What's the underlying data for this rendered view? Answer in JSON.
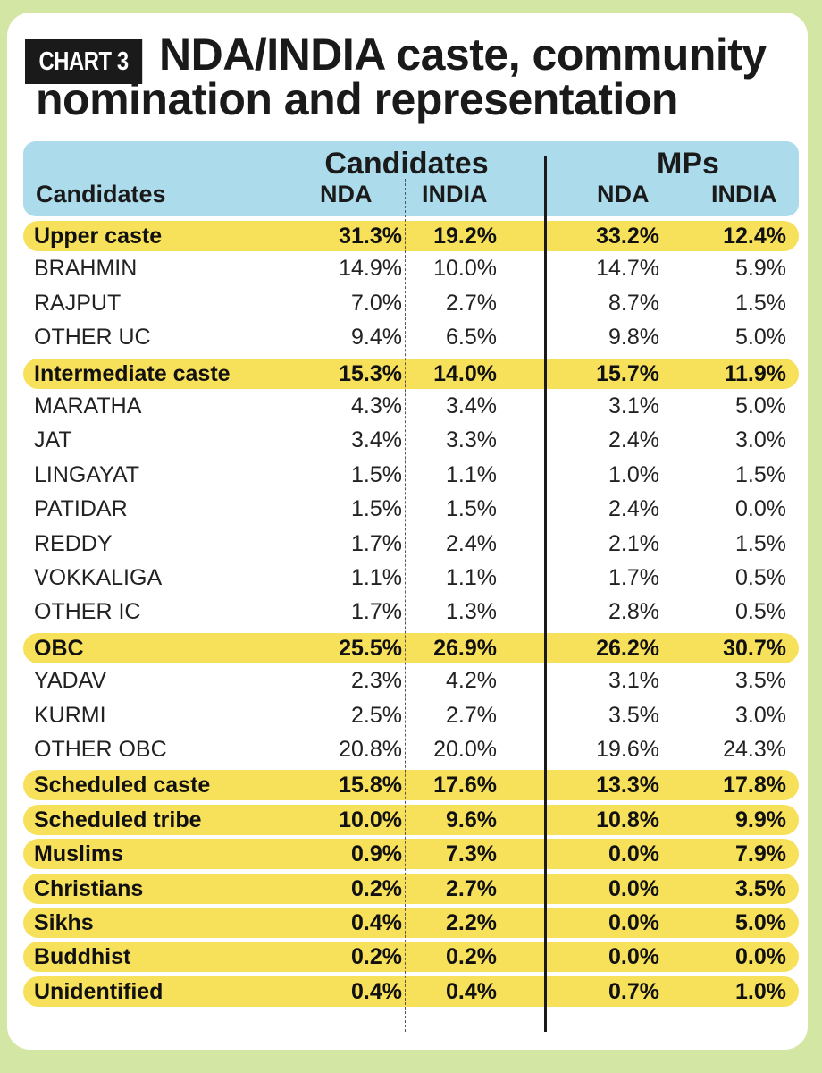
{
  "tag": "CHART 3",
  "title_line1": "NDA/INDIA caste, community",
  "title_line2": "nomination and representation",
  "header": {
    "first_col": "Candidates",
    "group_candidates": "Candidates",
    "group_mps": "MPs",
    "nda": "NDA",
    "india": "INDIA"
  },
  "chart_data": {
    "type": "table",
    "title": "NDA/INDIA caste, community nomination and representation",
    "columns": [
      "Candidates NDA",
      "Candidates INDIA",
      "MPs NDA",
      "MPs INDIA"
    ],
    "rows": [
      {
        "label": "Upper caste",
        "highlight": true,
        "values": [
          "31.3%",
          "19.2%",
          "33.2%",
          "12.4%"
        ]
      },
      {
        "label": "BRAHMIN",
        "highlight": false,
        "values": [
          "14.9%",
          "10.0%",
          "14.7%",
          "5.9%"
        ]
      },
      {
        "label": "RAJPUT",
        "highlight": false,
        "values": [
          "7.0%",
          "2.7%",
          "8.7%",
          "1.5%"
        ]
      },
      {
        "label": "OTHER UC",
        "highlight": false,
        "values": [
          "9.4%",
          "6.5%",
          "9.8%",
          "5.0%"
        ]
      },
      {
        "label": "Intermediate caste",
        "highlight": true,
        "values": [
          "15.3%",
          "14.0%",
          "15.7%",
          "11.9%"
        ]
      },
      {
        "label": "MARATHA",
        "highlight": false,
        "values": [
          "4.3%",
          "3.4%",
          "3.1%",
          "5.0%"
        ]
      },
      {
        "label": "JAT",
        "highlight": false,
        "values": [
          "3.4%",
          "3.3%",
          "2.4%",
          "3.0%"
        ]
      },
      {
        "label": "LINGAYAT",
        "highlight": false,
        "values": [
          "1.5%",
          "1.1%",
          "1.0%",
          "1.5%"
        ]
      },
      {
        "label": "PATIDAR",
        "highlight": false,
        "values": [
          "1.5%",
          "1.5%",
          "2.4%",
          "0.0%"
        ]
      },
      {
        "label": "REDDY",
        "highlight": false,
        "values": [
          "1.7%",
          "2.4%",
          "2.1%",
          "1.5%"
        ]
      },
      {
        "label": "VOKKALIGA",
        "highlight": false,
        "values": [
          "1.1%",
          "1.1%",
          "1.7%",
          "0.5%"
        ]
      },
      {
        "label": "OTHER IC",
        "highlight": false,
        "values": [
          "1.7%",
          "1.3%",
          "2.8%",
          "0.5%"
        ]
      },
      {
        "label": "OBC",
        "highlight": true,
        "values": [
          "25.5%",
          "26.9%",
          "26.2%",
          "30.7%"
        ]
      },
      {
        "label": "YADAV",
        "highlight": false,
        "values": [
          "2.3%",
          "4.2%",
          "3.1%",
          "3.5%"
        ]
      },
      {
        "label": "KURMI",
        "highlight": false,
        "values": [
          "2.5%",
          "2.7%",
          "3.5%",
          "3.0%"
        ]
      },
      {
        "label": "OTHER OBC",
        "highlight": false,
        "values": [
          "20.8%",
          "20.0%",
          "19.6%",
          "24.3%"
        ]
      },
      {
        "label": "Scheduled caste",
        "highlight": true,
        "values": [
          "15.8%",
          "17.6%",
          "13.3%",
          "17.8%"
        ]
      },
      {
        "label": "Scheduled tribe",
        "highlight": true,
        "values": [
          "10.0%",
          "9.6%",
          "10.8%",
          "9.9%"
        ]
      },
      {
        "label": "Muslims",
        "highlight": true,
        "values": [
          "0.9%",
          "7.3%",
          "0.0%",
          "7.9%"
        ]
      },
      {
        "label": "Christians",
        "highlight": true,
        "values": [
          "0.2%",
          "2.7%",
          "0.0%",
          "3.5%"
        ]
      },
      {
        "label": "Sikhs",
        "highlight": true,
        "values": [
          "0.4%",
          "2.2%",
          "0.0%",
          "5.0%"
        ]
      },
      {
        "label": "Buddhist",
        "highlight": true,
        "values": [
          "0.2%",
          "0.2%",
          "0.0%",
          "0.0%"
        ]
      },
      {
        "label": "Unidentified",
        "highlight": true,
        "values": [
          "0.4%",
          "0.4%",
          "0.7%",
          "1.0%"
        ]
      }
    ]
  },
  "colors": {
    "highlight": "#f7e05a",
    "header_band": "#acdcec",
    "background": "#d4e6a4"
  }
}
